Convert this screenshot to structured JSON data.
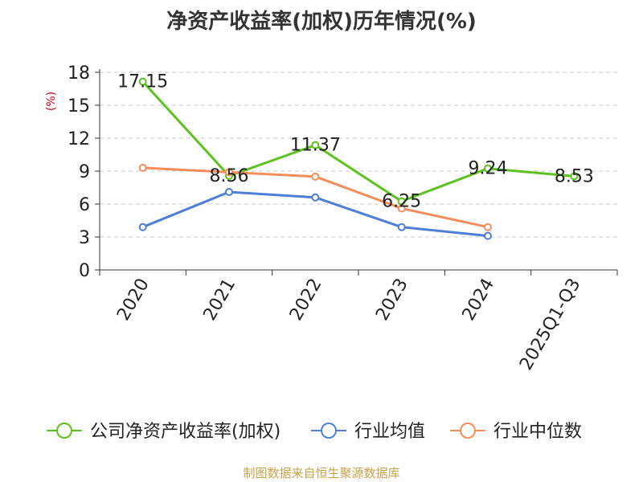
{
  "chart_data": {
    "type": "line",
    "title": "净资产收益率(加权)历年情况(%)",
    "ylabel": "(%)",
    "xlabel": "",
    "categories": [
      "2020",
      "2021",
      "2022",
      "2023",
      "2024",
      "2025Q1-Q3"
    ],
    "yticks": [
      0,
      3,
      6,
      9,
      12,
      15,
      18
    ],
    "ylim": [
      0,
      18
    ],
    "grid": true,
    "legend_position": "bottom",
    "series": [
      {
        "name": "公司净资产收益率(加权)",
        "color": "#5cc21d",
        "values": [
          17.15,
          8.56,
          11.37,
          6.25,
          9.24,
          8.53
        ],
        "labels": [
          "17.15",
          "8.56",
          "11.37",
          "6.25",
          "9.24",
          "8.53"
        ]
      },
      {
        "name": "行业均值",
        "color": "#4c7fd9",
        "values": [
          3.9,
          7.1,
          6.6,
          3.9,
          3.1,
          null
        ]
      },
      {
        "name": "行业中位数",
        "color": "#f58d5b",
        "values": [
          9.3,
          8.9,
          8.5,
          5.6,
          3.9,
          null
        ]
      }
    ]
  },
  "source_note": "制图数据来自恒生聚源数据库"
}
